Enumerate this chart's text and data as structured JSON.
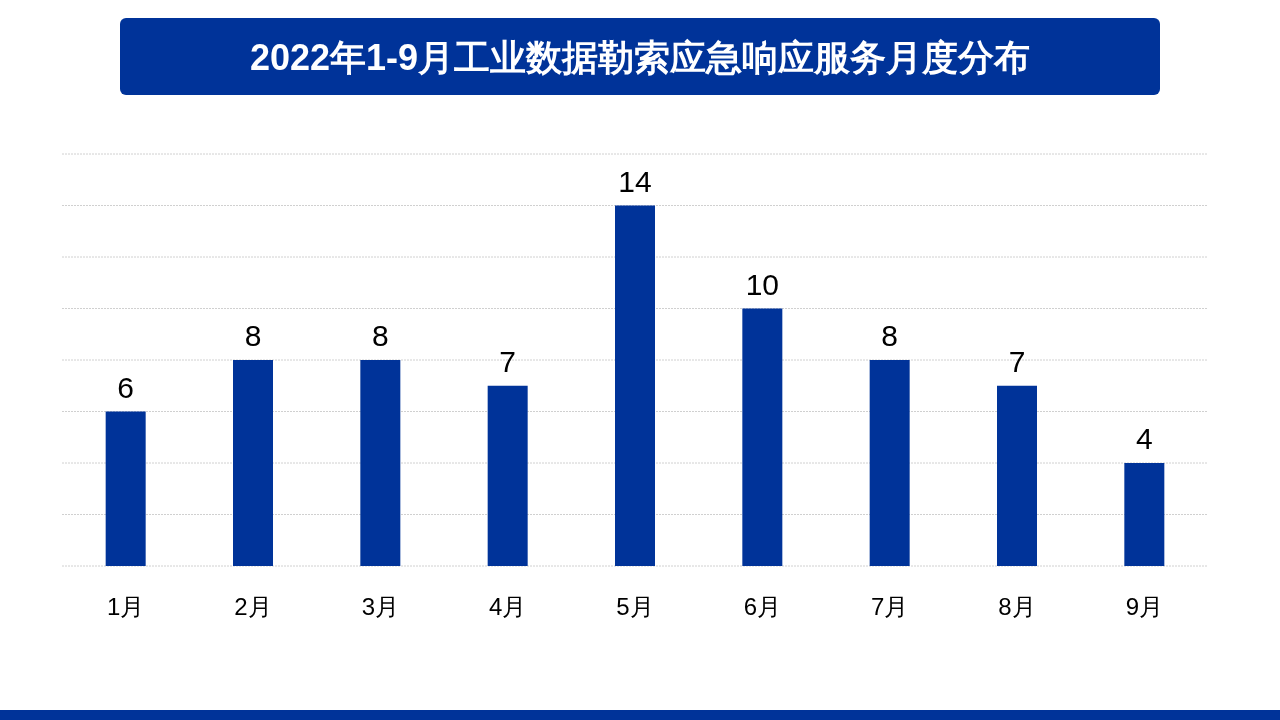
{
  "chart_data": {
    "type": "bar",
    "title": "2022年1-9月工业数据勒索应急响应服务月度分布",
    "categories": [
      "1月",
      "2月",
      "3月",
      "4月",
      "5月",
      "6月",
      "7月",
      "8月",
      "9月"
    ],
    "values": [
      6,
      8,
      8,
      7,
      14,
      10,
      8,
      7,
      4
    ],
    "color": "#003399",
    "ylim": [
      0,
      16
    ],
    "yticks": [
      {
        "value": 0,
        "label": null
      },
      {
        "value": 2,
        "label": null
      },
      {
        "value": 4,
        "label": null
      },
      {
        "value": 6,
        "label": null
      },
      {
        "value": 8,
        "label": null
      },
      {
        "value": 10,
        "label": null
      },
      {
        "value": 12,
        "label": null
      },
      {
        "value": 14,
        "label": null
      },
      {
        "value": 16,
        "label": null
      }
    ],
    "grid": "y",
    "data_labels": true
  }
}
